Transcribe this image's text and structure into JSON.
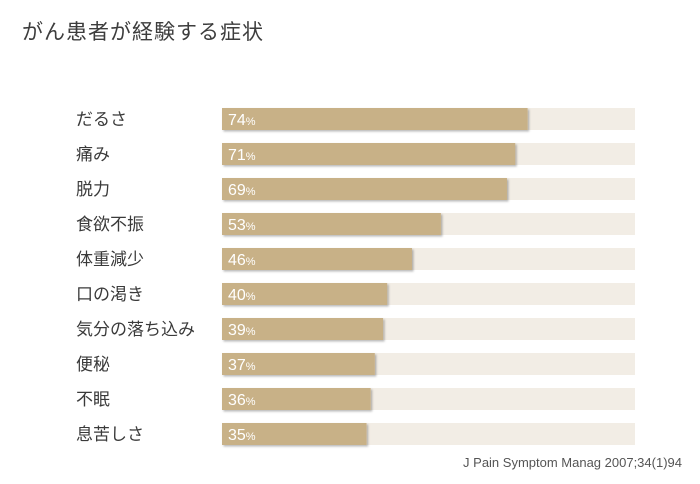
{
  "chart_data": {
    "type": "bar",
    "orientation": "horizontal",
    "title": "がん患者が経験する症状",
    "categories": [
      "だるさ",
      "痛み",
      "脱力",
      "食欲不振",
      "体重減少",
      "口の渇き",
      "気分の落ち込み",
      "便秘",
      "不眠",
      "息苦しさ"
    ],
    "values": [
      74,
      71,
      69,
      53,
      46,
      40,
      39,
      37,
      36,
      35
    ],
    "value_suffix": "%",
    "xlim": [
      0,
      100
    ],
    "grid": false,
    "legend": "none",
    "source": "J Pain Symptom Manag 2007;34(1)94",
    "colors": {
      "bar": "#c8b187",
      "track": "#f2ede5",
      "value_text": "#ffffff"
    }
  }
}
